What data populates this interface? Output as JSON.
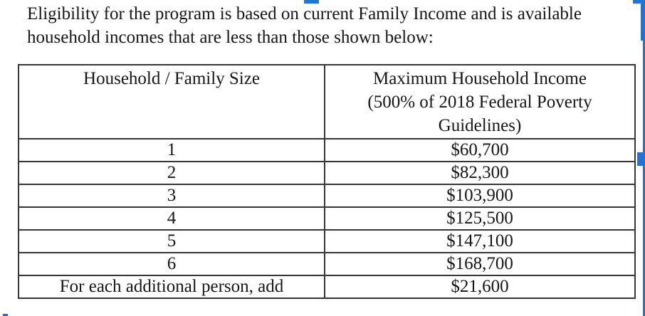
{
  "intro": {
    "line1": "Eligibility for the program is based on current Family Income and is available",
    "line2": "household incomes that are less than those shown below:"
  },
  "table": {
    "col1_header": "Household / Family Size",
    "col2_header_lines": [
      "Maximum Household Income",
      "(500% of 2018 Federal Poverty",
      "Guidelines)"
    ],
    "rows": [
      {
        "size": "1",
        "income": "$60,700"
      },
      {
        "size": "2",
        "income": "$82,300"
      },
      {
        "size": "3",
        "income": "$103,900"
      },
      {
        "size": "4",
        "income": "$125,500"
      },
      {
        "size": "5",
        "income": "$147,100"
      },
      {
        "size": "6",
        "income": "$168,700"
      },
      {
        "size": "For each additional person, add",
        "income": "$21,600"
      }
    ]
  },
  "colors": {
    "selection_accent": "#2273d4",
    "text": "#161616",
    "table_border": "#373737",
    "background": "#ffffff"
  }
}
